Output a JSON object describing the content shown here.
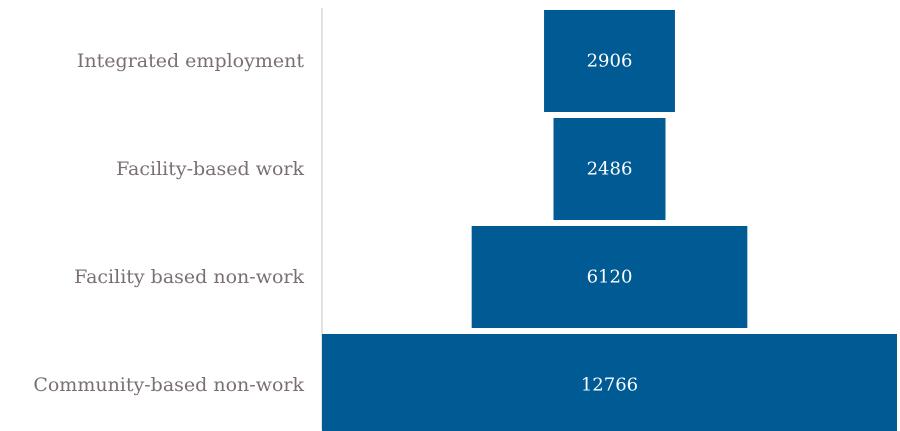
{
  "chart_data": {
    "type": "bar",
    "orientation": "horizontal-centered",
    "categories": [
      "Integrated employment",
      "Facility-based work",
      "Facility based non-work",
      "Community-based non-work"
    ],
    "values": [
      2906,
      2486,
      6120,
      12766
    ],
    "title": "",
    "xlabel": "",
    "ylabel": "",
    "grid": false,
    "legend": "none",
    "colors": {
      "bar": "#005a93",
      "value_text": "#ffffff",
      "category_text": "#7a7070",
      "axis_line": "#d9d9d9"
    }
  }
}
